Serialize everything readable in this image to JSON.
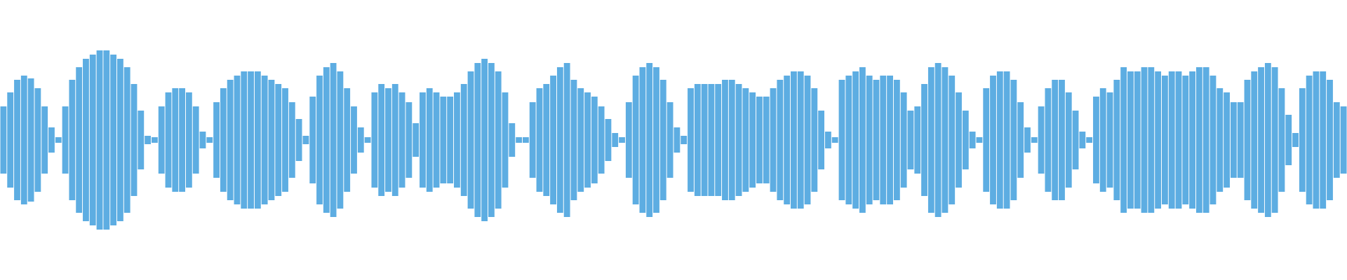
{
  "chart_data": {
    "type": "waveform",
    "color": "#5dade2",
    "ylim": [
      -1,
      1
    ],
    "values": [
      0.24,
      0.34,
      0.43,
      0.46,
      0.44,
      0.37,
      0.24,
      0.09,
      0.02,
      0.24,
      0.43,
      0.52,
      0.58,
      0.61,
      0.64,
      0.64,
      0.61,
      0.58,
      0.52,
      0.4,
      0.21,
      0.03,
      0.02,
      0.24,
      0.34,
      0.37,
      0.37,
      0.34,
      0.24,
      0.06,
      0.02,
      0.27,
      0.37,
      0.43,
      0.46,
      0.49,
      0.49,
      0.49,
      0.46,
      0.43,
      0.4,
      0.37,
      0.27,
      0.15,
      0.03,
      0.31,
      0.46,
      0.52,
      0.55,
      0.49,
      0.37,
      0.24,
      0.09,
      0.02,
      0.34,
      0.4,
      0.37,
      0.4,
      0.34,
      0.27,
      0.12,
      0.34,
      0.37,
      0.34,
      0.31,
      0.31,
      0.34,
      0.4,
      0.49,
      0.55,
      0.58,
      0.55,
      0.49,
      0.34,
      0.12,
      0.02,
      0.02,
      0.27,
      0.37,
      0.4,
      0.46,
      0.52,
      0.55,
      0.43,
      0.37,
      0.34,
      0.31,
      0.24,
      0.15,
      0.05,
      0.02,
      0.27,
      0.46,
      0.52,
      0.55,
      0.52,
      0.43,
      0.27,
      0.09,
      0.03,
      0.37,
      0.4,
      0.4,
      0.4,
      0.4,
      0.43,
      0.43,
      0.4,
      0.37,
      0.34,
      0.31,
      0.31,
      0.37,
      0.43,
      0.46,
      0.49,
      0.49,
      0.46,
      0.37,
      0.21,
      0.06,
      0.02,
      0.43,
      0.46,
      0.49,
      0.52,
      0.46,
      0.43,
      0.46,
      0.46,
      0.43,
      0.34,
      0.21,
      0.24,
      0.4,
      0.52,
      0.55,
      0.52,
      0.46,
      0.34,
      0.21,
      0.06,
      0.02,
      0.37,
      0.46,
      0.49,
      0.49,
      0.43,
      0.27,
      0.09,
      0.02,
      0.24,
      0.37,
      0.43,
      0.43,
      0.34,
      0.21,
      0.06,
      0.02,
      0.31,
      0.37,
      0.34,
      0.43,
      0.52,
      0.49,
      0.49,
      0.52,
      0.52,
      0.49,
      0.46,
      0.49,
      0.49,
      0.46,
      0.49,
      0.52,
      0.52,
      0.46,
      0.37,
      0.34,
      0.27,
      0.27,
      0.43,
      0.49,
      0.52,
      0.55,
      0.52,
      0.37,
      0.18,
      0.05,
      0.37,
      0.46,
      0.49,
      0.49,
      0.43,
      0.27,
      0.24
    ]
  }
}
